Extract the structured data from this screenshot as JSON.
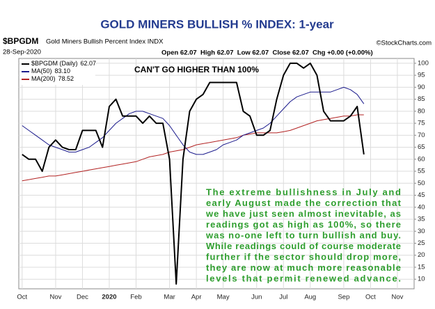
{
  "header": {
    "title": "GOLD MINERS BULLISH % INDEX: 1-year",
    "symbol": "$BPGDM",
    "description": "Gold Miners Bullish Percent Index INDX",
    "source": "©StockCharts.com",
    "date": "28-Sep-2020",
    "quote": "Open 62.07  High 62.07  Low 62.07  Close 62.07  Chg +0.00 (+0.00%)"
  },
  "chart_data": {
    "type": "line",
    "annotation": "CAN'T GO HIGHER THAN 100%",
    "commentary": [
      "The extreme bullishness in July and",
      "early August made the correction that",
      "we have just seen almost inevitable, as",
      "readings got as high as 100%, so there",
      "was no-one left to turn bullish and buy.",
      "While readings could of course moderate",
      "further if the sector should drop more,",
      "they are now at much more reasonable",
      "levels that permit renewed advance."
    ],
    "categories": [
      "Oct",
      null,
      null,
      null,
      null,
      "Nov",
      null,
      null,
      null,
      "Dec",
      null,
      null,
      null,
      "2020",
      null,
      null,
      null,
      "Feb",
      null,
      null,
      null,
      null,
      "Mar",
      null,
      null,
      null,
      "Apr",
      null,
      null,
      null,
      "May",
      null,
      null,
      null,
      null,
      "Jun",
      null,
      null,
      null,
      "Jul",
      null,
      null,
      null,
      "Aug",
      null,
      null,
      null,
      null,
      "Sep",
      null,
      null,
      null,
      "Oct",
      null,
      null,
      null,
      "Nov",
      null,
      null
    ],
    "series": [
      {
        "name": "$BPGDM (Daily)",
        "last": "62.07",
        "color": "#000000",
        "width": 2,
        "values": [
          62,
          60,
          60,
          55,
          65,
          68,
          65,
          64,
          64,
          72,
          72,
          72,
          65,
          82,
          85,
          78,
          78,
          78,
          75,
          78,
          75,
          75,
          60,
          8,
          60,
          80,
          85,
          87,
          92,
          92,
          92,
          92,
          92,
          80,
          78,
          70,
          70,
          72,
          85,
          95,
          100,
          100,
          98,
          100,
          95,
          80,
          76,
          76,
          76,
          78,
          82,
          62,
          null,
          null,
          null,
          null,
          null,
          null,
          null
        ]
      },
      {
        "name": "MA(50)",
        "last": "83.10",
        "color": "#1a1a8c",
        "width": 1,
        "values": [
          74,
          72,
          70,
          68,
          66,
          65,
          64,
          63,
          63,
          64,
          65,
          67,
          69,
          72,
          75,
          77,
          79,
          80,
          80,
          79,
          78,
          77,
          74,
          70,
          66,
          63,
          62,
          62,
          63,
          64,
          66,
          67,
          68,
          70,
          71,
          72,
          73,
          75,
          78,
          81,
          84,
          86,
          87,
          88,
          88,
          88,
          88,
          89,
          90,
          89,
          87,
          83.1,
          null,
          null,
          null,
          null,
          null,
          null,
          null
        ]
      },
      {
        "name": "MA(200)",
        "last": "78.52",
        "color": "#b22222",
        "width": 1,
        "values": [
          51,
          51.5,
          52,
          52.5,
          53,
          53,
          53.5,
          54,
          54.5,
          55,
          55.5,
          56,
          56.5,
          57,
          57.5,
          58,
          58.5,
          59,
          60,
          61,
          61.5,
          62,
          63,
          63.5,
          64,
          65,
          66,
          66.5,
          67,
          67.5,
          68,
          68.5,
          69,
          70,
          70.5,
          71,
          71,
          71,
          71,
          71.5,
          72,
          73,
          74,
          75,
          76,
          76.5,
          77,
          77.5,
          78,
          78,
          78.5,
          78.5,
          null,
          null,
          null,
          null,
          null,
          null,
          null
        ]
      }
    ],
    "ylim": [
      6,
      102
    ],
    "yticks": [
      10,
      15,
      20,
      25,
      30,
      35,
      40,
      45,
      50,
      55,
      60,
      65,
      70,
      75,
      80,
      85,
      90,
      95,
      100
    ],
    "grid": true
  }
}
